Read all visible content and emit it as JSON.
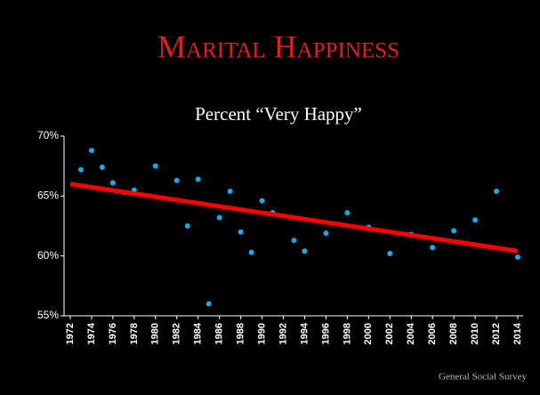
{
  "chart_data": {
    "type": "scatter",
    "title": "Marital Happiness",
    "subtitle": "Percent “Very Happy”",
    "source": "General Social Survey",
    "x": [
      1973,
      1974,
      1975,
      1976,
      1977,
      1978,
      1980,
      1982,
      1983,
      1984,
      1985,
      1986,
      1987,
      1988,
      1989,
      1990,
      1991,
      1993,
      1994,
      1996,
      1998,
      2000,
      2002,
      2004,
      2006,
      2008,
      2010,
      2012,
      2014
    ],
    "series": [
      {
        "color": "#1fa8e8",
        "values": [
          67.2,
          68.8,
          67.4,
          66.1,
          65.3,
          65.5,
          67.5,
          66.3,
          62.5,
          66.4,
          56.0,
          63.2,
          65.4,
          62.0,
          60.3,
          64.6,
          63.6,
          61.3,
          60.4,
          61.9,
          63.6,
          62.4,
          60.2,
          61.8,
          60.7,
          62.1,
          63.0,
          65.4,
          59.9
        ]
      }
    ],
    "trend": {
      "color": "#ff0000",
      "x": [
        1972,
        2014
      ],
      "values": [
        66.0,
        60.4
      ]
    },
    "title_color": "#e21f1f",
    "xlim": [
      1972,
      2014
    ],
    "xticks": [
      1972,
      1974,
      1976,
      1978,
      1980,
      1982,
      1984,
      1986,
      1988,
      1990,
      1992,
      1994,
      1996,
      1998,
      2000,
      2002,
      2004,
      2006,
      2008,
      2010,
      2012,
      2014
    ],
    "ylim": [
      55,
      70
    ],
    "yticks": [
      {
        "value": 55,
        "label": "55%"
      },
      {
        "value": 60,
        "label": "60%"
      },
      {
        "value": 65,
        "label": "65%"
      },
      {
        "value": 70,
        "label": "70%"
      }
    ]
  }
}
